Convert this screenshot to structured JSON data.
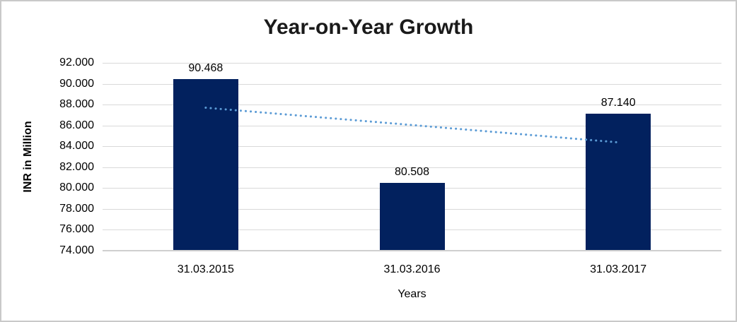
{
  "chart_data": {
    "type": "bar",
    "title": "Year-on-Year Growth",
    "categories": [
      "31.03.2015",
      "31.03.2016",
      "31.03.2017"
    ],
    "values": [
      90.468,
      80.508,
      87.14
    ],
    "data_labels": [
      "90.468",
      "80.508",
      "87.140"
    ],
    "xlabel": "Years",
    "ylabel": "INR in Million",
    "ylim": [
      74,
      92
    ],
    "ytick_step": 2,
    "ytick_labels": [
      "92.000",
      "90.000",
      "88.000",
      "86.000",
      "84.000",
      "82.000",
      "80.000",
      "78.000",
      "76.000",
      "74.000"
    ],
    "grid": true,
    "legend": "none",
    "bar_color": "#02215e",
    "trendline": {
      "type": "linear",
      "style": "dotted",
      "color": "#5b9bd5",
      "start_value": 87.7,
      "end_value": 84.38
    }
  }
}
